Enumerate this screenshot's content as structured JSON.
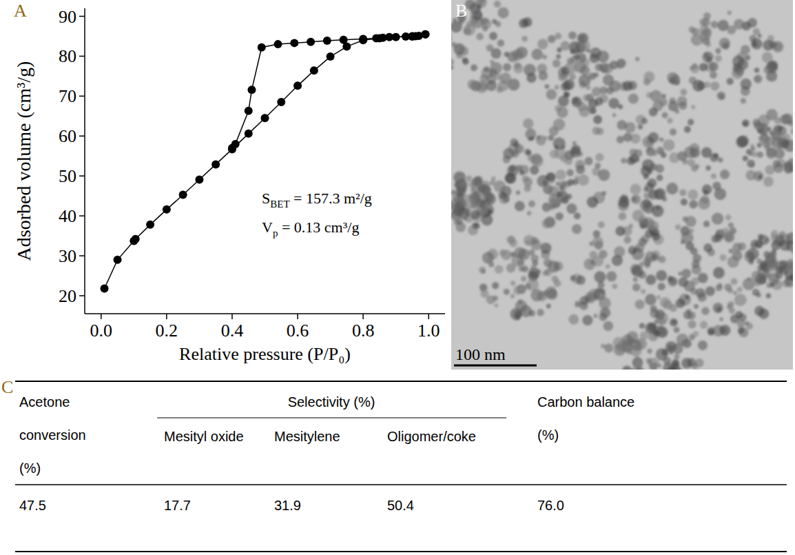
{
  "chart_data": {
    "type": "line",
    "x_label": "Relative pressure (P/P₀)",
    "y_label": "Adsorbed volume (cm³/g)",
    "xlim": [
      -0.05,
      1.05
    ],
    "ylim": [
      15.5,
      92
    ],
    "xticks": [
      {
        "value": 0,
        "label": "0.0"
      },
      0.2,
      0.4,
      0.6,
      0.8,
      {
        "value": 1,
        "label": "1.0"
      }
    ],
    "yticks": [
      20,
      30,
      40,
      50,
      60,
      70,
      80,
      90
    ],
    "marker": "circle",
    "color": "#000000",
    "series": [
      {
        "x": [
          0.01,
          0.05,
          0.1,
          0.105,
          0.15,
          0.2,
          0.25,
          0.3,
          0.35,
          0.4,
          0.45,
          0.5,
          0.55,
          0.6,
          0.65,
          0.7,
          0.75,
          0.8,
          0.85,
          0.9,
          0.95,
          0.99
        ],
        "values": [
          21.8,
          29.0,
          33.7,
          34.2,
          37.8,
          41.6,
          45.3,
          49.1,
          52.9,
          56.7,
          60.6,
          64.5,
          68.5,
          72.6,
          76.4,
          79.9,
          82.4,
          84.0,
          84.5,
          84.8,
          85.0,
          85.5
        ]
      },
      {
        "x": [
          0.99,
          0.97,
          0.96,
          0.95,
          0.93,
          0.88,
          0.86,
          0.84,
          0.8,
          0.74,
          0.69,
          0.64,
          0.59,
          0.54,
          0.49,
          0.46,
          0.45,
          0.41,
          0.4
        ],
        "values": [
          85.5,
          85.1,
          85.0,
          84.9,
          84.9,
          84.8,
          84.6,
          84.5,
          84.3,
          84.1,
          83.9,
          83.6,
          83.3,
          83.0,
          82.2,
          71.6,
          66.3,
          58.0,
          57.0
        ]
      }
    ],
    "annotations": [
      {
        "symbol": "S",
        "subscript": "BET",
        "text": " = 157.3 m²/g"
      },
      {
        "symbol": "V",
        "subscript": "p",
        "text": " = 0.13 cm³/g"
      }
    ]
  },
  "panel_labels": [
    "A",
    "B",
    "C"
  ],
  "image": {
    "scale_bar": "100 nm"
  },
  "table": {
    "header": {
      "first": "Acetone conversion (%)",
      "group": "Selectivity (%)",
      "group_columns": [
        "Mesityl oxide",
        "Mesitylene",
        "Oligomer/coke"
      ],
      "last": "Carbon balance (%)"
    },
    "rows": [
      [
        "47.5",
        "17.7",
        "31.9",
        "50.4",
        "76.0"
      ]
    ]
  }
}
